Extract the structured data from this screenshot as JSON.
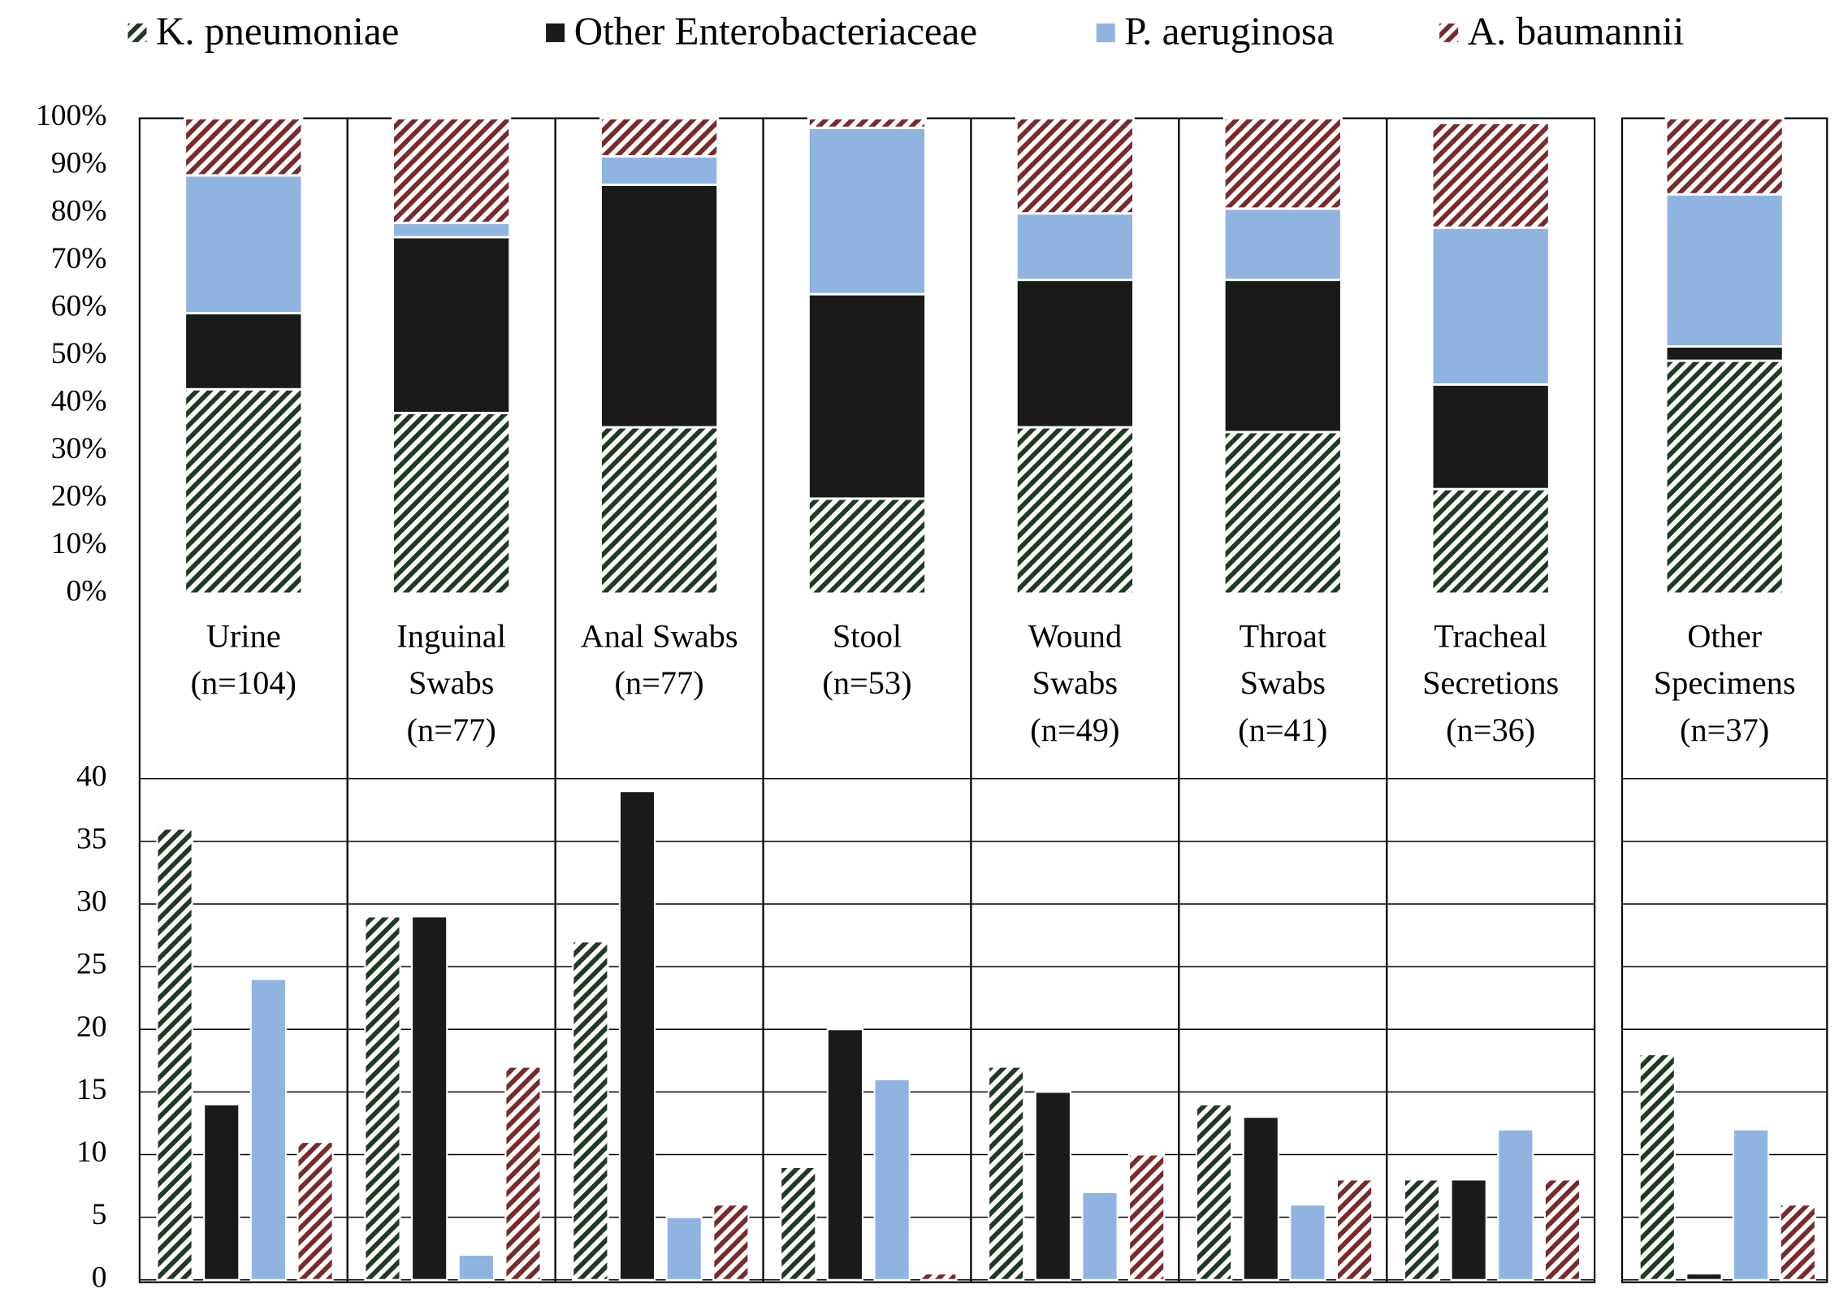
{
  "chart_data": [
    {
      "type": "stacked_percent_bar",
      "categories": [
        [
          "Urine",
          "(n=104)"
        ],
        [
          "Inguinal",
          "Swabs",
          "(n=77)"
        ],
        [
          "Anal Swabs",
          "(n=77)"
        ],
        [
          "Stool",
          "(n=53)"
        ],
        [
          "Wound",
          "Swabs",
          "(n=49)"
        ],
        [
          "Throat",
          "Swabs",
          "(n=41)"
        ],
        [
          "Tracheal",
          "Secretions",
          "(n=36)"
        ],
        [
          "Other",
          "Specimens",
          "(n=37)"
        ]
      ],
      "series": [
        {
          "name": "K. pneumoniae",
          "color": "#1f3a22",
          "hatch": true,
          "values": [
            43,
            38,
            35,
            20,
            35,
            34,
            22,
            49
          ]
        },
        {
          "name": "Other Enterobacteriaceae",
          "color": "#1a1a1a",
          "hatch": false,
          "values": [
            16,
            37,
            51,
            43,
            31,
            32,
            22,
            3
          ]
        },
        {
          "name": "P. aeruginosa",
          "color": "#8fb4e0",
          "hatch": false,
          "values": [
            29,
            3,
            6,
            35,
            14,
            15,
            33,
            32
          ]
        },
        {
          "name": "A. baumannii",
          "color": "#7a2a2a",
          "hatch": true,
          "values": [
            12,
            22,
            8,
            2,
            20,
            19,
            22,
            16
          ]
        }
      ],
      "ylim": [
        0,
        100
      ],
      "yticks": [
        {
          "value": 0,
          "label": "0%"
        },
        {
          "value": 10,
          "label": "10%"
        },
        {
          "value": 20,
          "label": "20%"
        },
        {
          "value": 30,
          "label": "30%"
        },
        {
          "value": 40,
          "label": "40%"
        },
        {
          "value": 50,
          "label": "50%"
        },
        {
          "value": 60,
          "label": "60%"
        },
        {
          "value": 70,
          "label": "70%"
        },
        {
          "value": 80,
          "label": "80%"
        },
        {
          "value": 90,
          "label": "90%"
        },
        {
          "value": 100,
          "label": "100%"
        }
      ]
    },
    {
      "type": "grouped_bar",
      "series": [
        {
          "values": [
            36,
            29,
            27,
            9,
            17,
            14,
            8,
            18
          ]
        },
        {
          "values": [
            14,
            29,
            39,
            20,
            15,
            13,
            8,
            0.5
          ]
        },
        {
          "values": [
            24,
            2,
            5,
            16,
            7,
            6,
            12,
            12
          ]
        },
        {
          "values": [
            11,
            17,
            6,
            0.5,
            10,
            8,
            8,
            6
          ]
        }
      ],
      "ylim": [
        0,
        40
      ],
      "yticks": [
        0,
        5,
        10,
        15,
        20,
        25,
        30,
        35,
        40
      ],
      "grid": true
    }
  ]
}
